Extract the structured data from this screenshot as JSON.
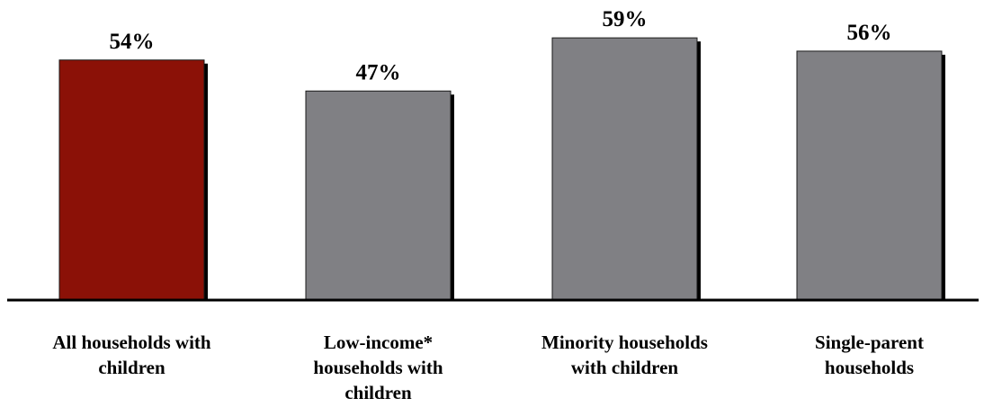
{
  "chart_data": {
    "type": "bar",
    "title": "",
    "xlabel": "",
    "ylabel": "",
    "ylim": [
      0,
      62
    ],
    "grid": false,
    "categories": [
      [
        "All households with",
        "children"
      ],
      [
        "Low-income*",
        "households with",
        "children"
      ],
      [
        "Minority households",
        "with children"
      ],
      [
        "Single-parent",
        "households"
      ]
    ],
    "values": [
      54,
      47,
      59,
      56
    ],
    "value_labels": [
      "54%",
      "47%",
      "59%",
      "56%"
    ],
    "colors": [
      "#8b1107",
      "#808084",
      "#808084",
      "#808084"
    ],
    "shadow_color": "#000000",
    "axis_color": "#000000"
  }
}
